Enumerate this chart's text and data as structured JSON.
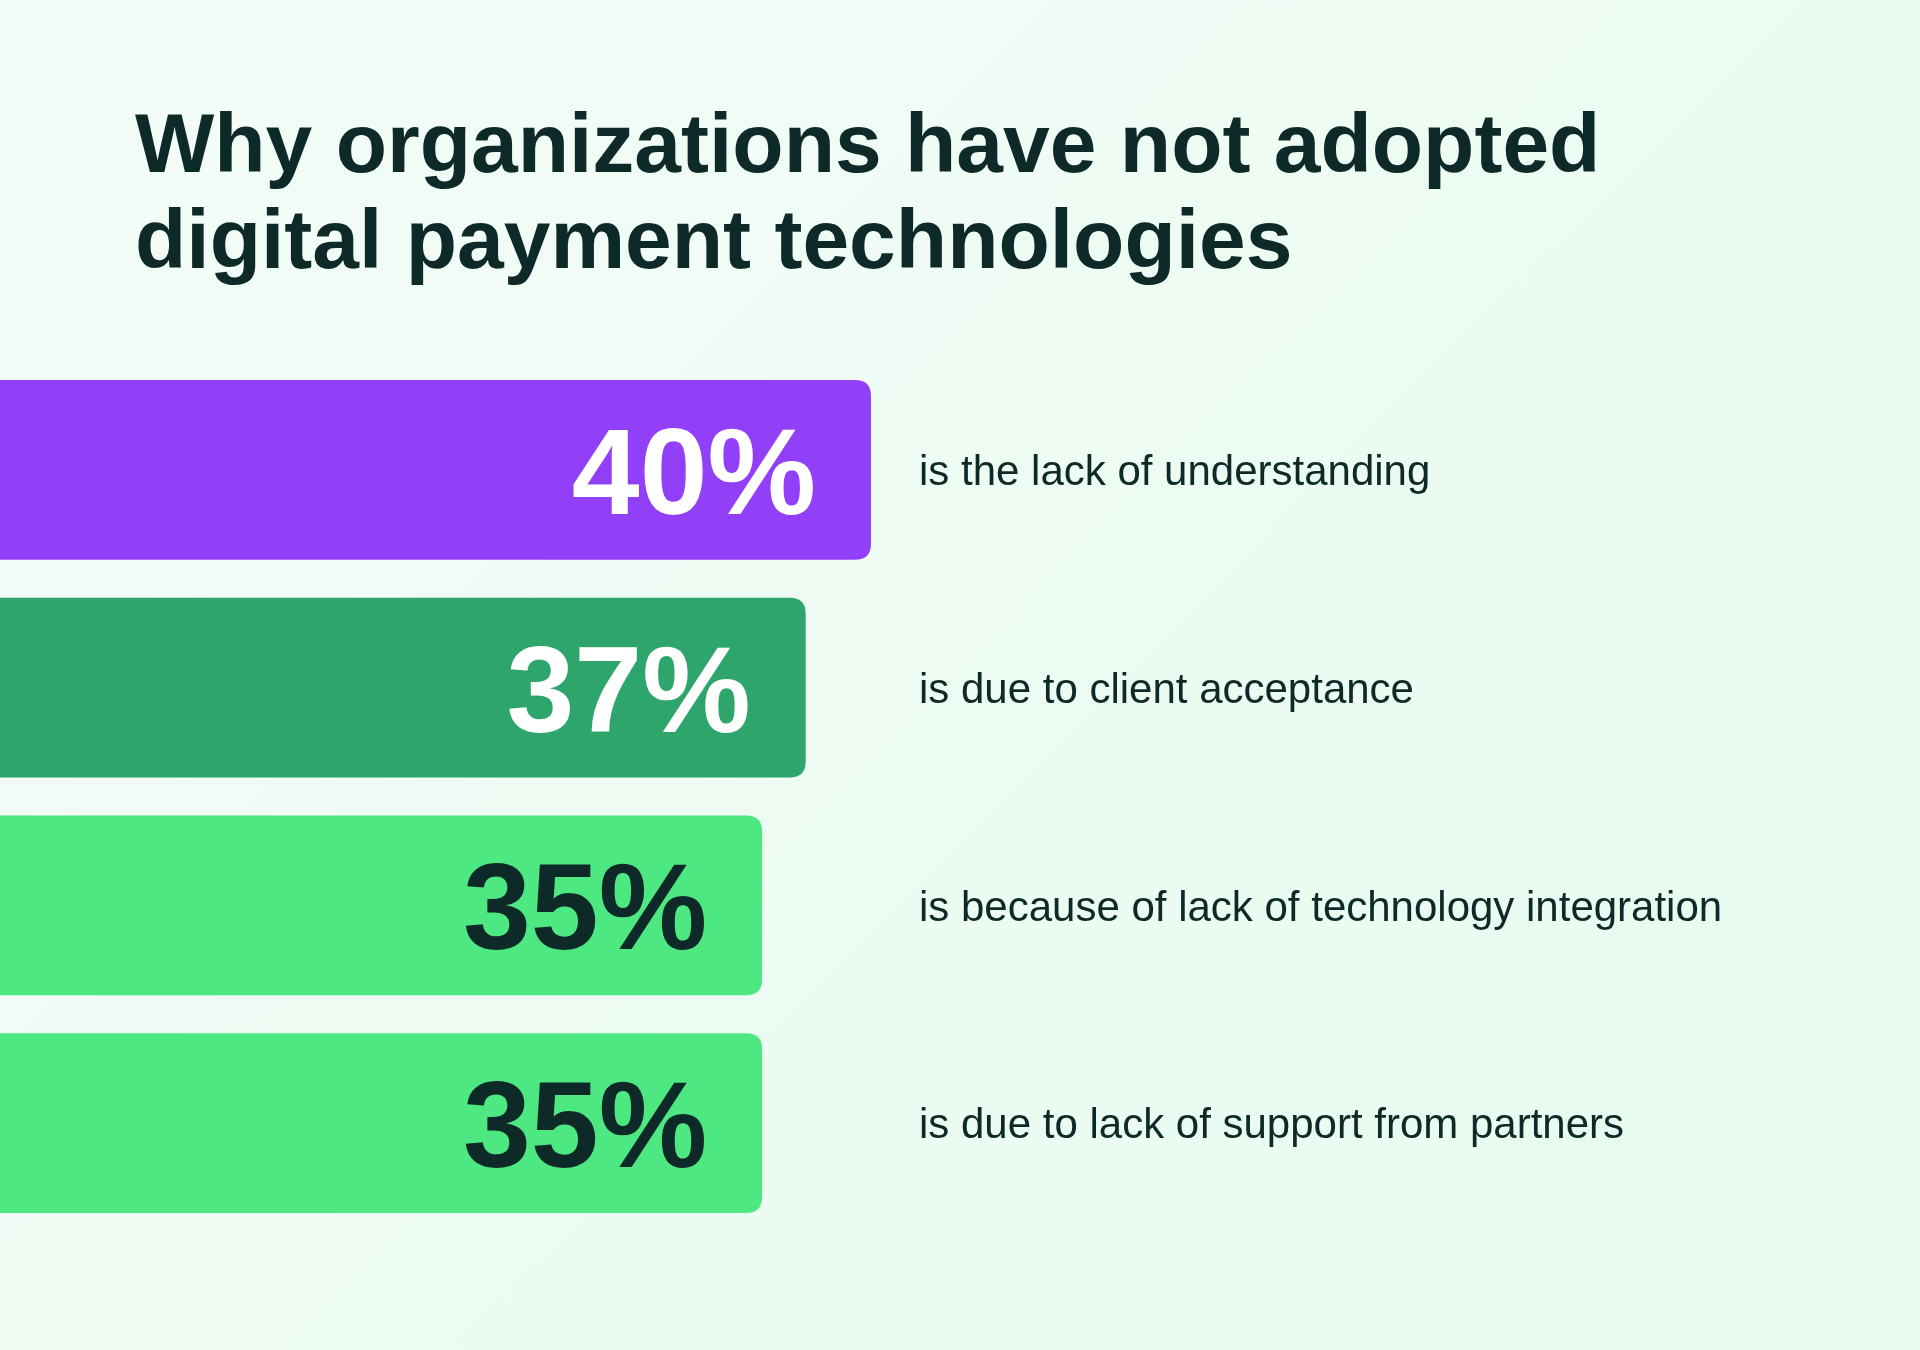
{
  "chart_data": {
    "type": "bar",
    "orientation": "horizontal",
    "title": "Why organizations have not adopted digital payment technologies",
    "categories": [
      "is the lack of understanding",
      "is due to client acceptance",
      "is because of lack of technology integration",
      "is due to lack of support from partners"
    ],
    "values": [
      40,
      37,
      35,
      35
    ],
    "colors": [
      "#9140f7",
      "#2ea56a",
      "#4ee882",
      "#4ee882"
    ],
    "xlim": [
      0,
      40
    ],
    "tick_labels": false,
    "value_labels": [
      "40%",
      "37%",
      "35%",
      "35%"
    ]
  }
}
